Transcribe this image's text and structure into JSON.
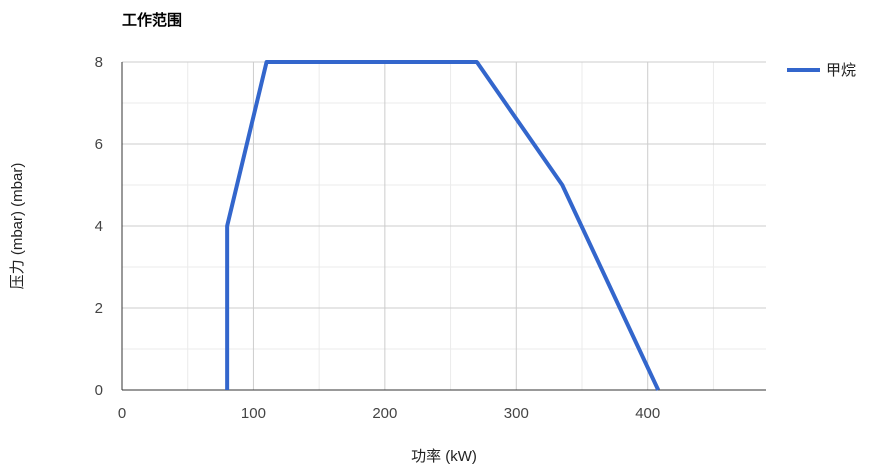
{
  "chart_data": {
    "type": "line",
    "title": "工作范围",
    "xlabel": "功率 (kW)",
    "ylabel": "压力 (mbar) (mbar)",
    "xlim": [
      0,
      490
    ],
    "ylim": [
      0,
      8
    ],
    "x_ticks": [
      0,
      100,
      200,
      300,
      400
    ],
    "y_ticks": [
      0,
      2,
      4,
      6,
      8
    ],
    "grid": true,
    "legend_position": "top-right",
    "series": [
      {
        "name": "甲烷",
        "color": "#3366cc",
        "points": [
          {
            "x": 80,
            "y": 0
          },
          {
            "x": 80,
            "y": 4
          },
          {
            "x": 110,
            "y": 8
          },
          {
            "x": 270,
            "y": 8
          },
          {
            "x": 335,
            "y": 5
          },
          {
            "x": 408,
            "y": 0
          }
        ]
      }
    ]
  }
}
